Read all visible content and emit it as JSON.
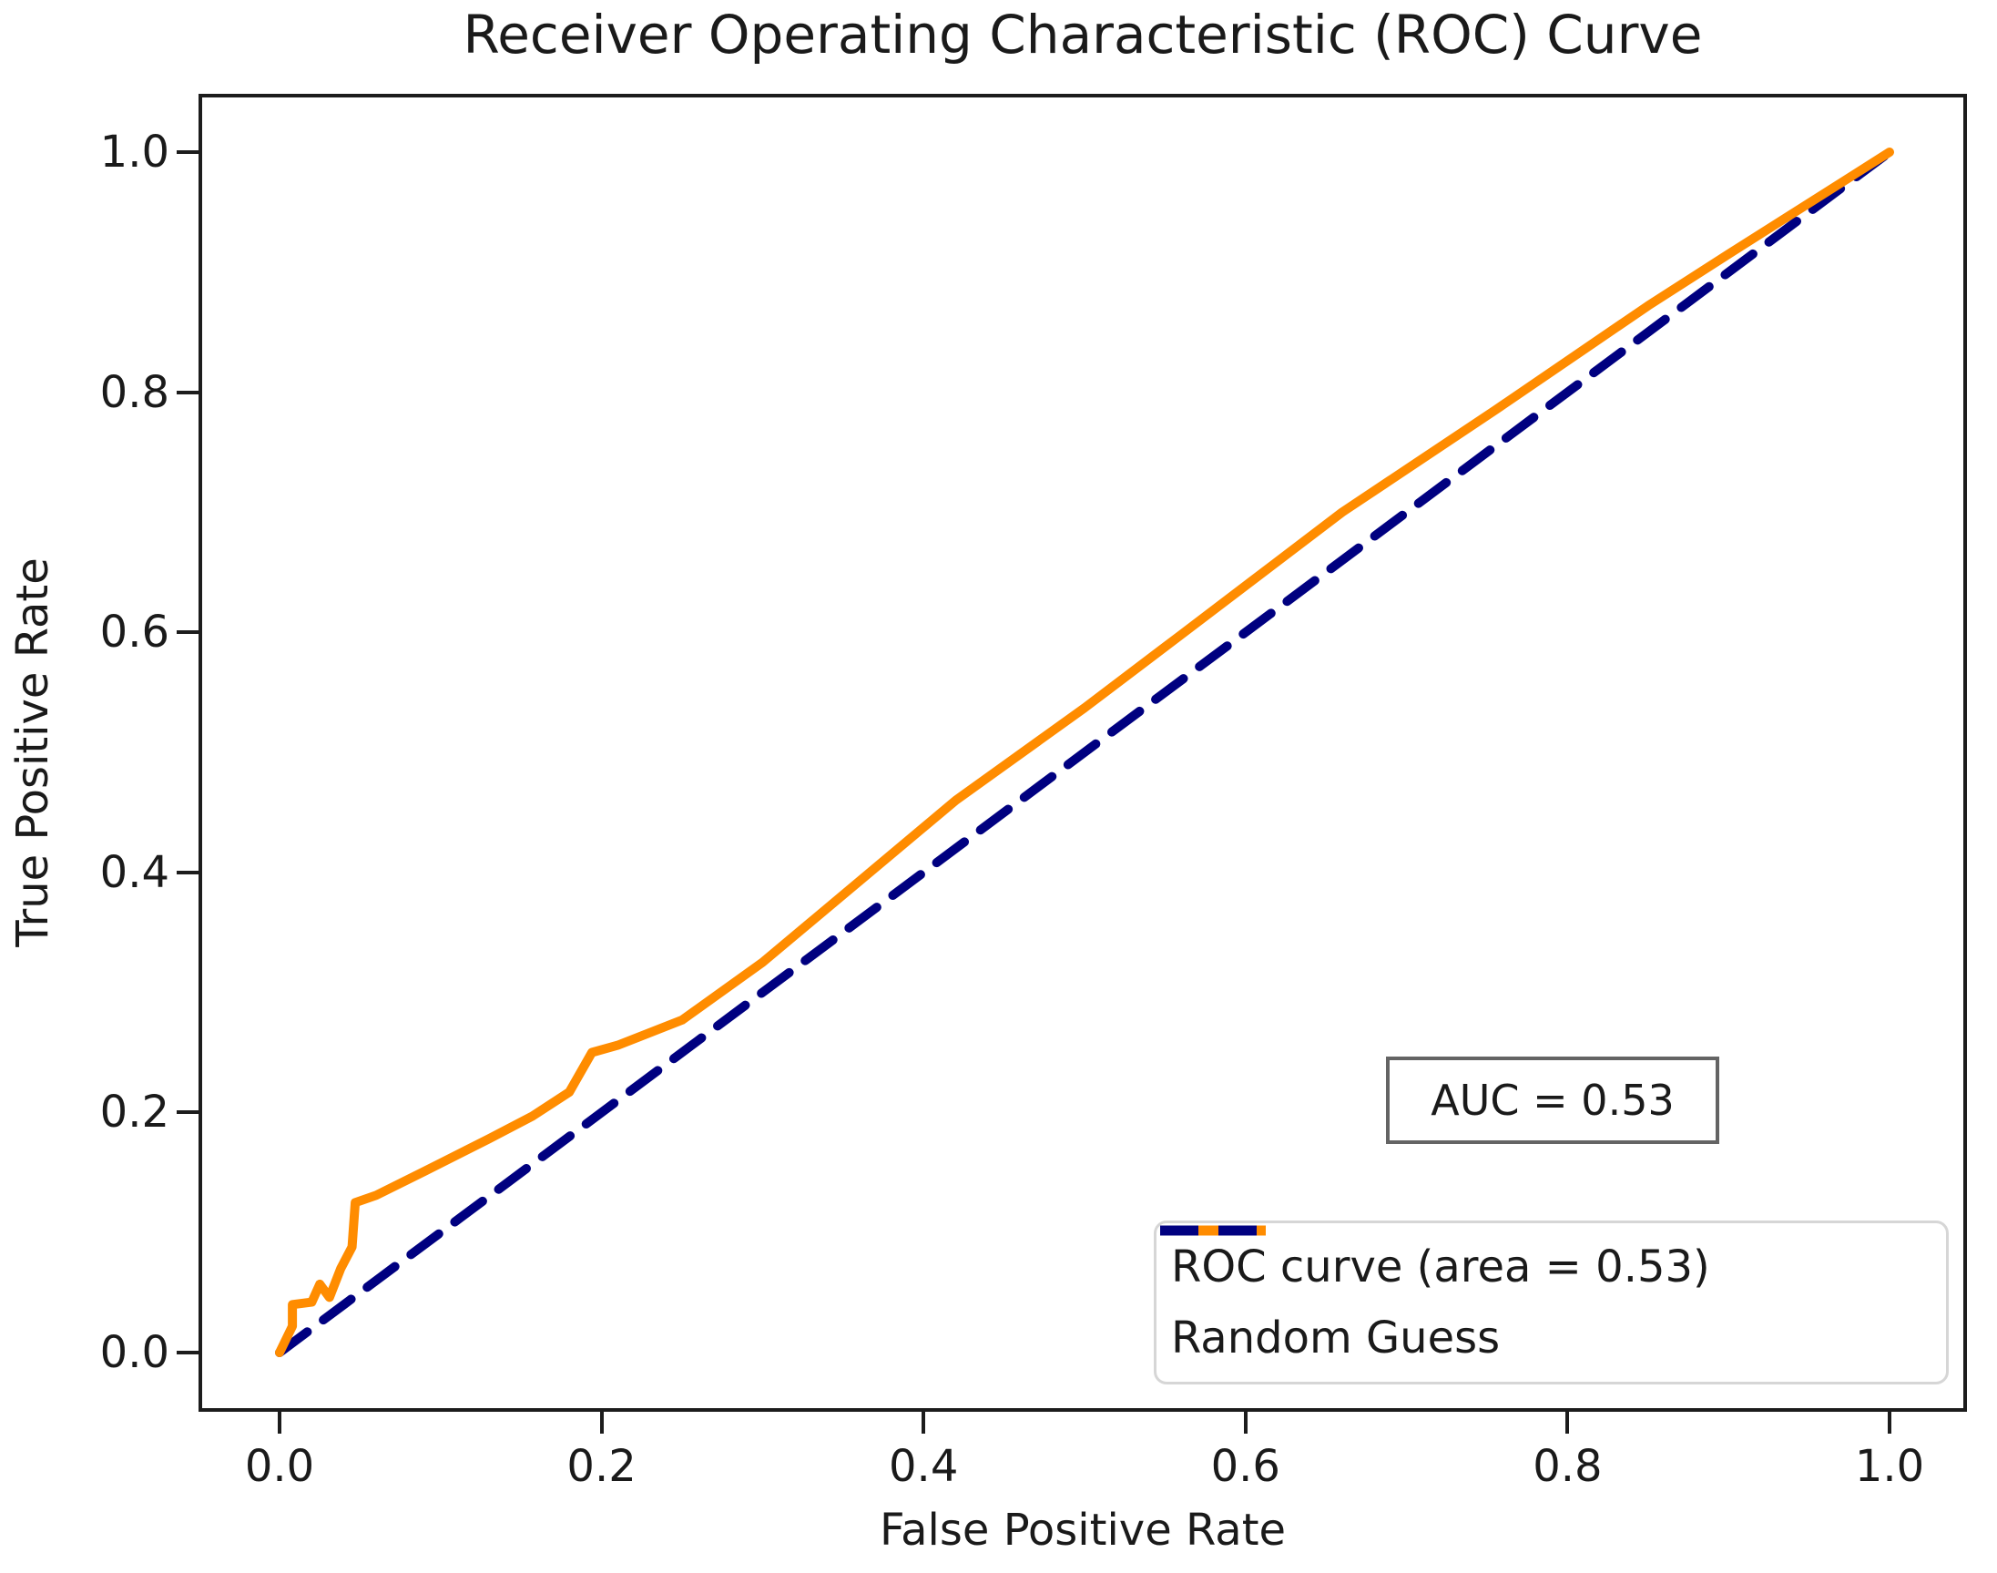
{
  "chart_data": {
    "type": "line",
    "title": "Receiver Operating Characteristic (ROC) Curve",
    "xlabel": "False Positive Rate",
    "ylabel": "True Positive Rate",
    "xlim": [
      0.0,
      1.0
    ],
    "ylim": [
      0.0,
      1.0
    ],
    "xtick_labels": [
      "0.0",
      "0.2",
      "0.4",
      "0.6",
      "0.8",
      "1.0"
    ],
    "xtick_values": [
      0.0,
      0.2,
      0.4,
      0.6,
      0.8,
      1.0
    ],
    "ytick_labels": [
      "0.0",
      "0.2",
      "0.4",
      "0.6",
      "0.8",
      "1.0"
    ],
    "ytick_values": [
      0.0,
      0.2,
      0.4,
      0.6,
      0.8,
      1.0
    ],
    "grid": false,
    "legend_position": "lower right",
    "annotation": {
      "text": "AUC = 0.53"
    },
    "auc": 0.53,
    "colors": {
      "roc": "#FF8C00",
      "diagonal": "#000080",
      "text": "#1a1a1a",
      "spine": "#1c1c1c"
    },
    "series": [
      {
        "name": "ROC curve (area = 0.53)",
        "color": "#FF8C00",
        "line_style": "solid",
        "x": [
          0.0,
          0.008,
          0.008,
          0.02,
          0.025,
          0.031,
          0.038,
          0.045,
          0.047,
          0.06,
          0.09,
          0.13,
          0.157,
          0.18,
          0.194,
          0.21,
          0.25,
          0.3,
          0.42,
          0.5,
          0.56,
          0.66,
          0.755,
          0.85,
          0.9,
          1.0
        ],
        "y": [
          0.0,
          0.022,
          0.04,
          0.042,
          0.057,
          0.046,
          0.07,
          0.088,
          0.125,
          0.131,
          0.151,
          0.178,
          0.197,
          0.217,
          0.25,
          0.256,
          0.277,
          0.325,
          0.46,
          0.537,
          0.598,
          0.7,
          0.785,
          0.872,
          0.915,
          1.0
        ]
      },
      {
        "name": "Random Guess",
        "color": "#000080",
        "line_style": "dashed",
        "x": [
          0.0,
          1.0
        ],
        "y": [
          0.0,
          1.0
        ]
      }
    ]
  }
}
